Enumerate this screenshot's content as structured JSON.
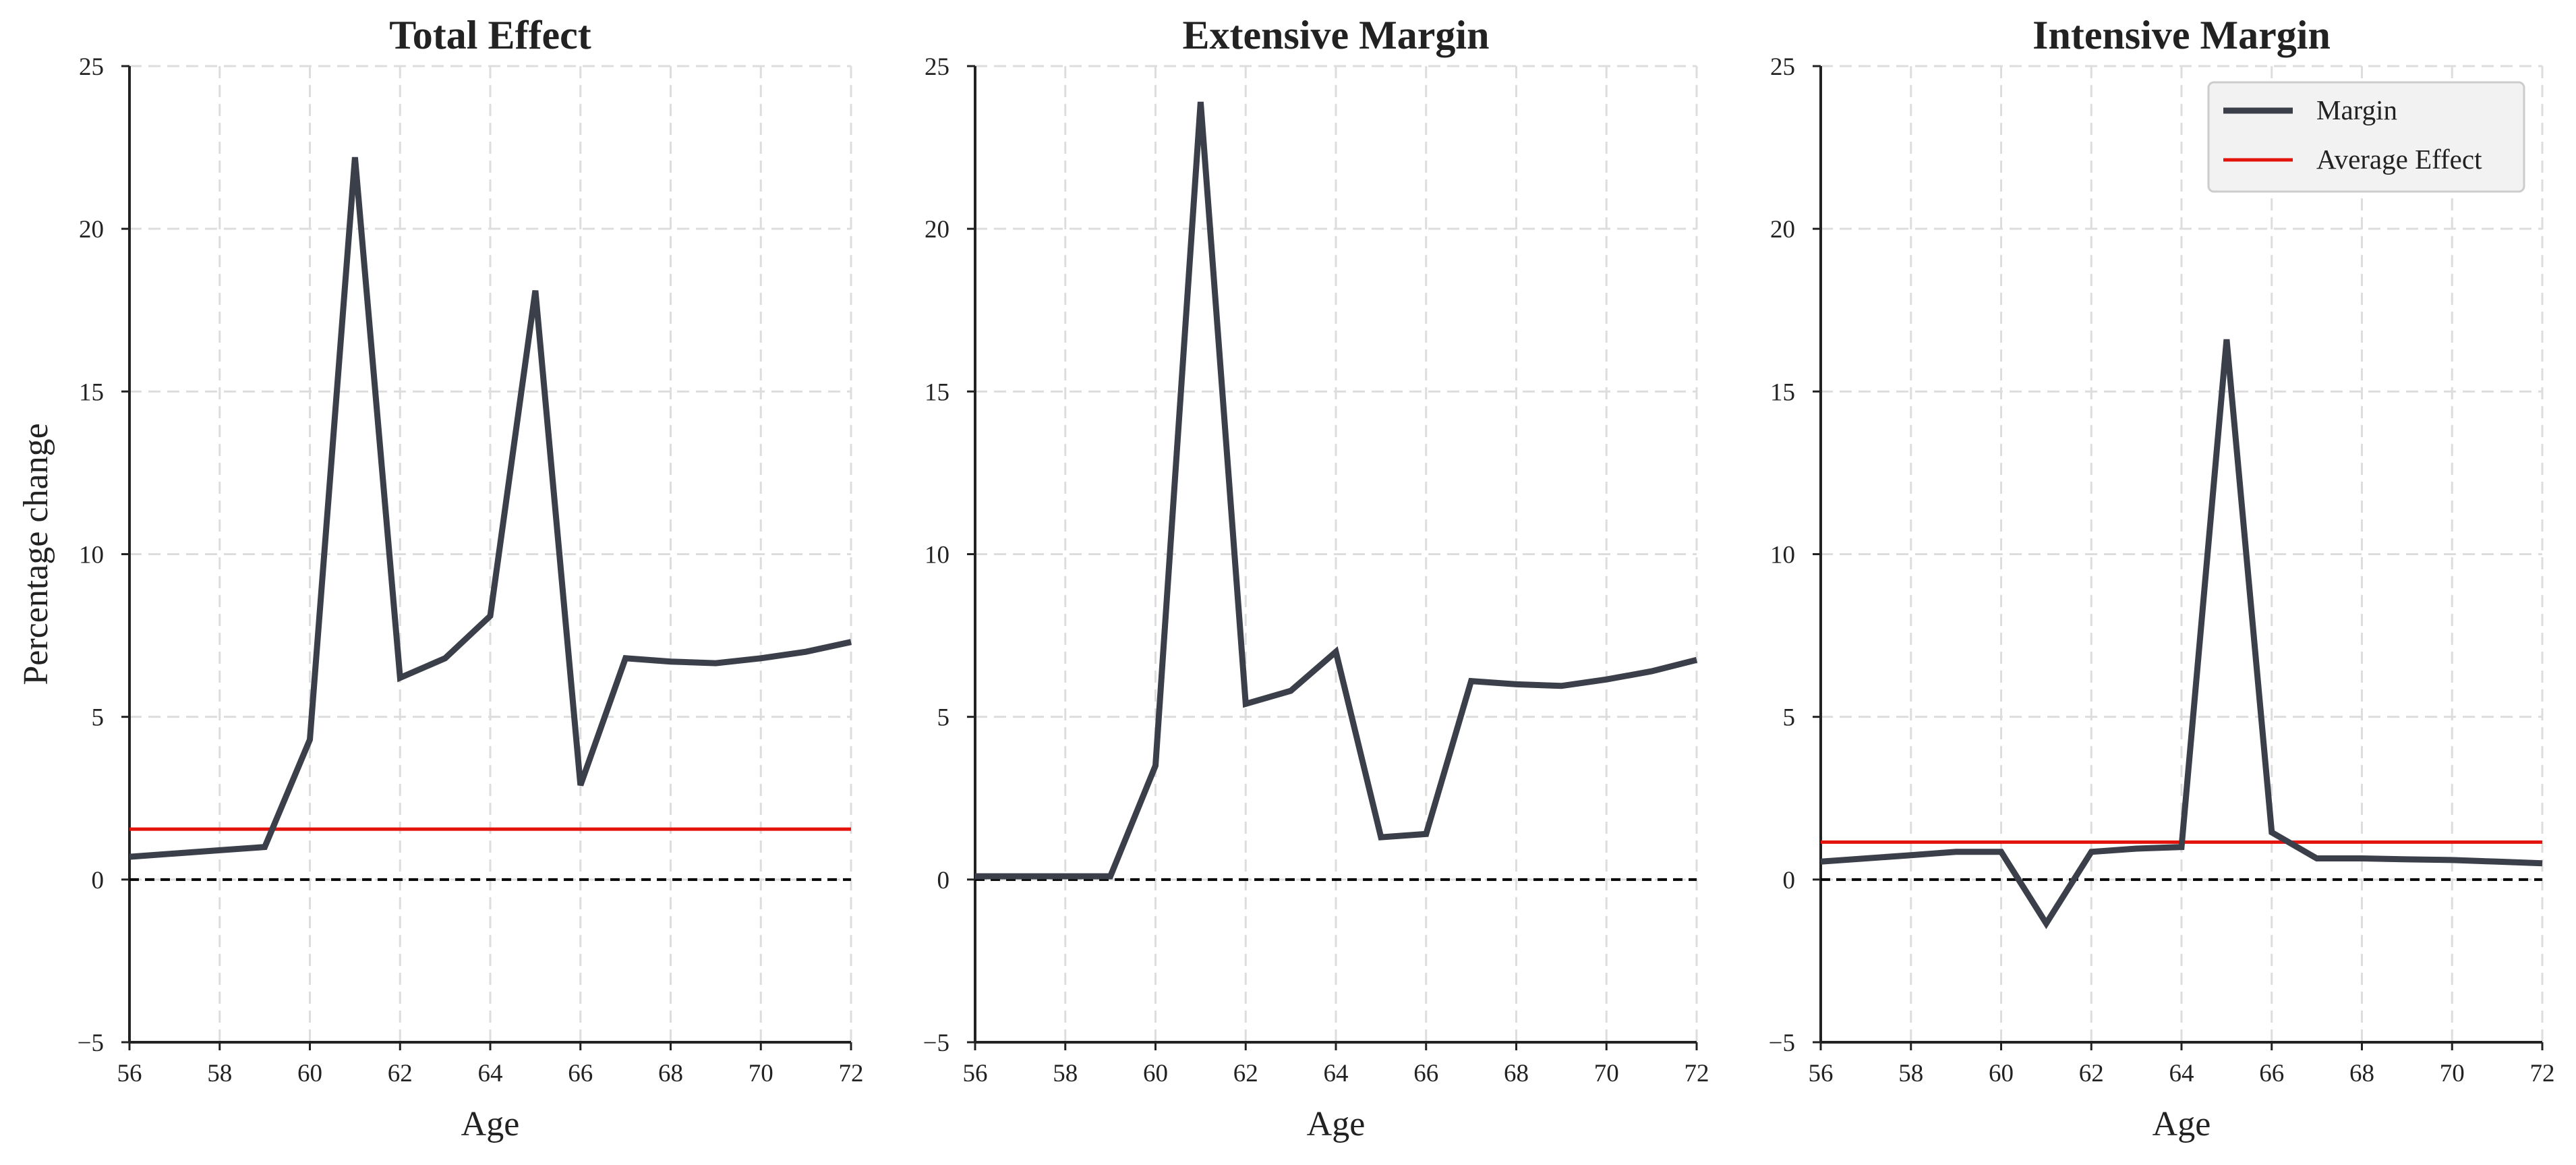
{
  "colors": {
    "margin_line": "#3b3f4a",
    "average_line": "#e3120b",
    "zero_line": "#000000",
    "grid": "#dddddd",
    "legend_bg": "#f2f2f2"
  },
  "axes": {
    "xlabel": "Age",
    "ylabel": "Percentage change",
    "x_ticks": [
      "56",
      "58",
      "60",
      "62",
      "64",
      "66",
      "68",
      "70",
      "72"
    ],
    "y_ticks": [
      "−5",
      "0",
      "5",
      "10",
      "15",
      "20",
      "25"
    ]
  },
  "legend": {
    "margin_label": "Margin",
    "average_label": "Average Effect",
    "position": "top-right",
    "shown_in_panel": 2
  },
  "chart_data": [
    {
      "type": "line",
      "title": "Total Effect",
      "xlabel": "Age",
      "ylabel": "Percentage change",
      "xlim": [
        56,
        72
      ],
      "ylim": [
        -5,
        25
      ],
      "grid": true,
      "series": [
        {
          "name": "Margin",
          "x": [
            56,
            57,
            58,
            59,
            60,
            61,
            62,
            63,
            64,
            65,
            66,
            67,
            68,
            69,
            70,
            71,
            72
          ],
          "values": [
            0.7,
            0.8,
            0.9,
            1.0,
            4.3,
            22.2,
            6.2,
            6.8,
            8.1,
            18.1,
            2.9,
            6.8,
            6.7,
            6.65,
            6.8,
            7.0,
            7.3
          ]
        }
      ],
      "average_effect": 1.55,
      "reference_line": 0
    },
    {
      "type": "line",
      "title": "Extensive Margin",
      "xlabel": "Age",
      "ylabel": "",
      "xlim": [
        56,
        72
      ],
      "ylim": [
        -5,
        25
      ],
      "grid": true,
      "series": [
        {
          "name": "Margin",
          "x": [
            56,
            57,
            58,
            59,
            60,
            61,
            62,
            63,
            64,
            65,
            66,
            67,
            68,
            69,
            70,
            71,
            72
          ],
          "values": [
            0.1,
            0.1,
            0.1,
            0.1,
            3.5,
            23.9,
            5.4,
            5.8,
            7.0,
            1.3,
            1.4,
            6.1,
            6.0,
            5.95,
            6.15,
            6.4,
            6.75
          ]
        }
      ],
      "reference_line": 0
    },
    {
      "type": "line",
      "title": "Intensive Margin",
      "xlabel": "Age",
      "ylabel": "",
      "xlim": [
        56,
        72
      ],
      "ylim": [
        -5,
        25
      ],
      "grid": true,
      "series": [
        {
          "name": "Margin",
          "x": [
            56,
            57,
            58,
            59,
            60,
            61,
            62,
            63,
            64,
            65,
            66,
            67,
            68,
            69,
            70,
            71,
            72
          ],
          "values": [
            0.55,
            0.65,
            0.75,
            0.85,
            0.85,
            -1.35,
            0.85,
            0.95,
            1.0,
            16.6,
            1.45,
            0.65,
            0.65,
            0.62,
            0.6,
            0.55,
            0.5
          ]
        }
      ],
      "average_effect": 1.15,
      "reference_line": 0
    }
  ]
}
